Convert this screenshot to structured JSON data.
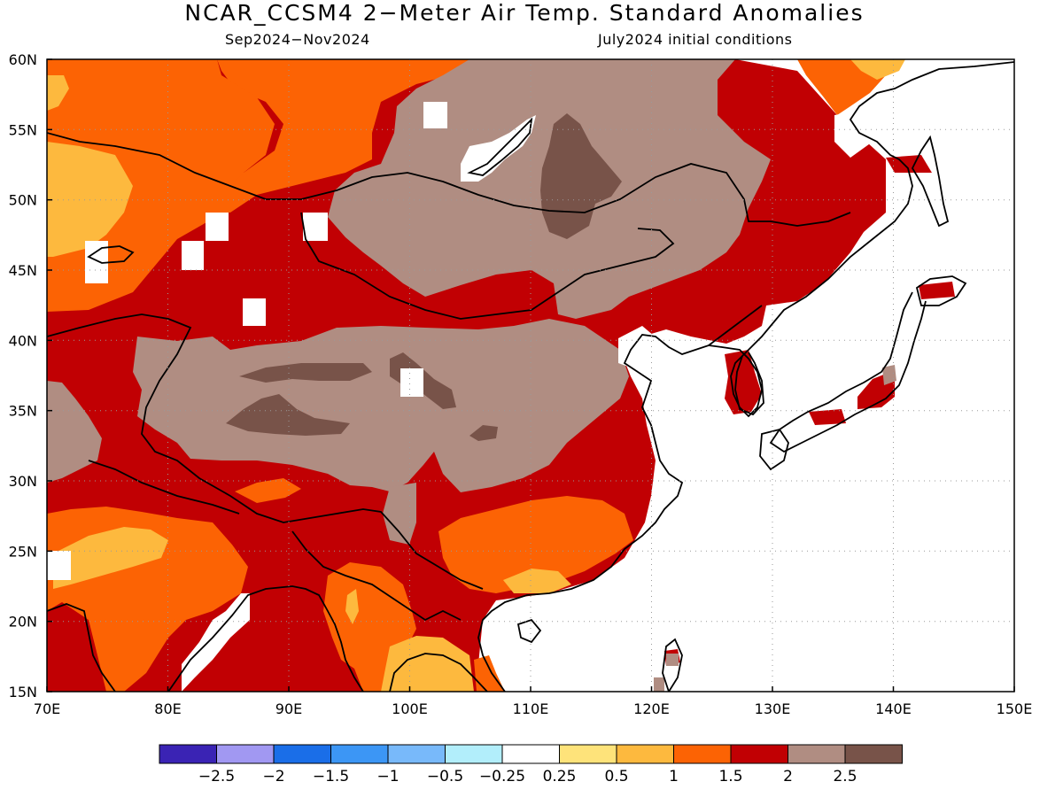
{
  "title": "NCAR_CCSM4 2−Meter Air Temp. Standard Anomalies",
  "subtitle_left": "Sep2024−Nov2024",
  "subtitle_right": "July2024 initial conditions",
  "map": {
    "region": "East Asia",
    "projection": "lat-lon",
    "lon_range": [
      70,
      150
    ],
    "lat_range": [
      15,
      60
    ],
    "lon_ticks": [
      {
        "value": 70,
        "label": "70E"
      },
      {
        "value": 80,
        "label": "80E"
      },
      {
        "value": 90,
        "label": "90E"
      },
      {
        "value": 100,
        "label": "100E"
      },
      {
        "value": 110,
        "label": "110E"
      },
      {
        "value": 120,
        "label": "120E"
      },
      {
        "value": 130,
        "label": "130E"
      },
      {
        "value": 140,
        "label": "140E"
      },
      {
        "value": 150,
        "label": "150E"
      }
    ],
    "lat_ticks": [
      {
        "value": 60,
        "label": "60N"
      },
      {
        "value": 55,
        "label": "55N"
      },
      {
        "value": 50,
        "label": "50N"
      },
      {
        "value": 45,
        "label": "45N"
      },
      {
        "value": 40,
        "label": "40N"
      },
      {
        "value": 35,
        "label": "35N"
      },
      {
        "value": 30,
        "label": "30N"
      },
      {
        "value": 25,
        "label": "25N"
      },
      {
        "value": 20,
        "label": "20N"
      },
      {
        "value": 15,
        "label": "15N"
      }
    ],
    "gridlines": "dotted"
  },
  "colorbar": {
    "bins": [
      {
        "color": "#3a23b4"
      },
      {
        "color": "#a198f2"
      },
      {
        "color": "#1a6ee8"
      },
      {
        "color": "#3c96f5"
      },
      {
        "color": "#78b9fa"
      },
      {
        "color": "#b2eefb"
      },
      {
        "color": "#ffffff"
      },
      {
        "color": "#fee37a"
      },
      {
        "color": "#fdb93e"
      },
      {
        "color": "#fc6304"
      },
      {
        "color": "#c10003"
      },
      {
        "color": "#b08d82"
      },
      {
        "color": "#785349"
      }
    ],
    "labels": [
      "−2.5",
      "−2",
      "−1.5",
      "−1",
      "−0.5",
      "−0.25",
      "0.25",
      "0.5",
      "1",
      "1.5",
      "2",
      "2.5"
    ]
  }
}
